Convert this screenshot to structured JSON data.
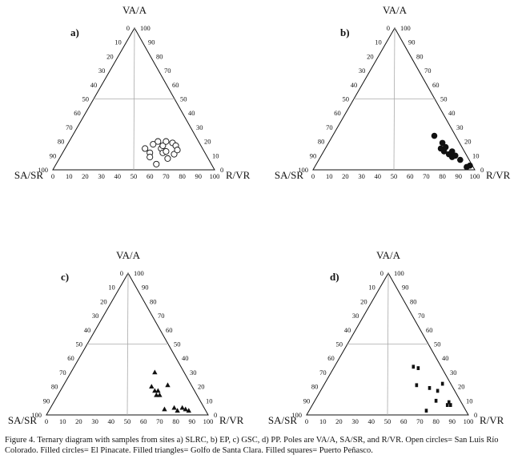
{
  "caption": "Figure 4. Ternary diagram with samples from sites a) SLRC, b) EP, c) GSC, d) PP.  Poles are VA/A, SA/SR, and R/VR. Open circles= San Luis Río Colorado. Filled circles= El Pinacate. Filled triangles= Golfo de Santa Clara. Filled squares= Puerto Peñasco.",
  "chart_data": [
    {
      "type": "scatter",
      "panel": "a)",
      "poles": {
        "top": "VA/A",
        "left": "SA/SR",
        "right": "R/VR"
      },
      "ticks": [
        0,
        10,
        20,
        30,
        40,
        50,
        60,
        70,
        80,
        90,
        100
      ],
      "marker": "open-circle",
      "marker_color": "#111111",
      "points": [
        {
          "x": 57,
          "y": 15
        },
        {
          "x": 60,
          "y": 12
        },
        {
          "x": 60,
          "y": 9
        },
        {
          "x": 62,
          "y": 18
        },
        {
          "x": 65,
          "y": 20
        },
        {
          "x": 67,
          "y": 15
        },
        {
          "x": 68,
          "y": 17
        },
        {
          "x": 68,
          "y": 12
        },
        {
          "x": 70,
          "y": 20
        },
        {
          "x": 70,
          "y": 13
        },
        {
          "x": 71,
          "y": 8
        },
        {
          "x": 74,
          "y": 19
        },
        {
          "x": 75,
          "y": 11
        },
        {
          "x": 76,
          "y": 17
        },
        {
          "x": 77,
          "y": 14
        },
        {
          "x": 64,
          "y": 4
        }
      ]
    },
    {
      "type": "scatter",
      "panel": "b)",
      "poles": {
        "top": "VA/A",
        "left": "SA/SR",
        "right": "R/VR"
      },
      "ticks": [
        0,
        10,
        20,
        30,
        40,
        50,
        60,
        70,
        80,
        90,
        100
      ],
      "marker": "filled-circle",
      "marker_color": "#111111",
      "points": [
        {
          "x": 75,
          "y": 24
        },
        {
          "x": 80,
          "y": 19
        },
        {
          "x": 79,
          "y": 15
        },
        {
          "x": 81,
          "y": 13
        },
        {
          "x": 82,
          "y": 16
        },
        {
          "x": 84,
          "y": 11
        },
        {
          "x": 86,
          "y": 13
        },
        {
          "x": 86,
          "y": 9
        },
        {
          "x": 88,
          "y": 10
        },
        {
          "x": 91,
          "y": 7
        },
        {
          "x": 95,
          "y": 2
        },
        {
          "x": 97,
          "y": 3
        }
      ]
    },
    {
      "type": "scatter",
      "panel": "c)",
      "poles": {
        "top": "VA/A",
        "left": "SA/SR",
        "right": "R/VR"
      },
      "ticks": [
        0,
        10,
        20,
        30,
        40,
        50,
        60,
        70,
        80,
        90,
        100
      ],
      "marker": "filled-triangle",
      "marker_color": "#111111",
      "points": [
        {
          "x": 67,
          "y": 30
        },
        {
          "x": 65,
          "y": 20
        },
        {
          "x": 67,
          "y": 17
        },
        {
          "x": 68,
          "y": 14
        },
        {
          "x": 69,
          "y": 17
        },
        {
          "x": 70,
          "y": 14
        },
        {
          "x": 75,
          "y": 21
        },
        {
          "x": 73,
          "y": 4
        },
        {
          "x": 79,
          "y": 5
        },
        {
          "x": 81,
          "y": 3
        },
        {
          "x": 84,
          "y": 5
        },
        {
          "x": 86,
          "y": 4
        },
        {
          "x": 88,
          "y": 3
        }
      ]
    },
    {
      "type": "scatter",
      "panel": "d)",
      "poles": {
        "top": "VA/A",
        "left": "SA/SR",
        "right": "R/VR"
      },
      "ticks": [
        0,
        10,
        20,
        30,
        40,
        50,
        60,
        70,
        80,
        90,
        100
      ],
      "marker": "filled-square",
      "marker_color": "#111111",
      "points": [
        {
          "x": 66,
          "y": 34
        },
        {
          "x": 69,
          "y": 33
        },
        {
          "x": 68,
          "y": 21
        },
        {
          "x": 76,
          "y": 19
        },
        {
          "x": 81,
          "y": 17
        },
        {
          "x": 84,
          "y": 22
        },
        {
          "x": 80,
          "y": 10
        },
        {
          "x": 74,
          "y": 3
        },
        {
          "x": 87,
          "y": 7
        },
        {
          "x": 88,
          "y": 9
        },
        {
          "x": 89,
          "y": 7
        }
      ]
    }
  ]
}
